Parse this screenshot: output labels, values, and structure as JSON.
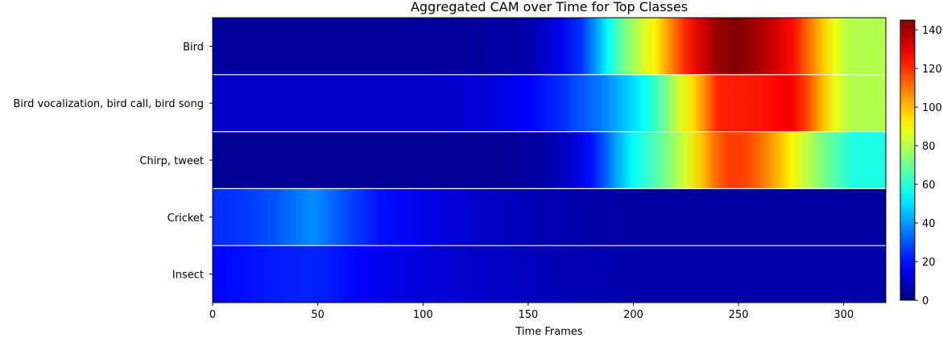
{
  "chart_data": {
    "type": "heatmap",
    "title": "Aggregated CAM over Time for Top Classes",
    "xlabel": "Time Frames",
    "ylabel": "",
    "xlim": [
      0,
      320
    ],
    "xticks": [
      0,
      50,
      100,
      150,
      200,
      250,
      300
    ],
    "colormap": "jet",
    "color_range": [
      0,
      145
    ],
    "colorbar_ticks": [
      0,
      20,
      40,
      60,
      80,
      100,
      120,
      140
    ],
    "rows": [
      {
        "label": "Bird",
        "profile": [
          [
            0,
            4
          ],
          [
            120,
            4
          ],
          [
            150,
            6
          ],
          [
            165,
            15
          ],
          [
            175,
            25
          ],
          [
            182,
            40
          ],
          [
            188,
            55
          ],
          [
            195,
            70
          ],
          [
            203,
            82
          ],
          [
            210,
            92
          ],
          [
            218,
            108
          ],
          [
            225,
            122
          ],
          [
            232,
            132
          ],
          [
            240,
            142
          ],
          [
            248,
            145
          ],
          [
            258,
            140
          ],
          [
            268,
            133
          ],
          [
            276,
            125
          ],
          [
            283,
            112
          ],
          [
            290,
            98
          ],
          [
            296,
            88
          ],
          [
            302,
            80
          ],
          [
            320,
            80
          ]
        ]
      },
      {
        "label": "Bird vocalization, bird call, bird song",
        "profile": [
          [
            0,
            10
          ],
          [
            60,
            10
          ],
          [
            100,
            10
          ],
          [
            130,
            12
          ],
          [
            150,
            18
          ],
          [
            165,
            24
          ],
          [
            175,
            30
          ],
          [
            185,
            36
          ],
          [
            195,
            45
          ],
          [
            205,
            55
          ],
          [
            215,
            70
          ],
          [
            222,
            85
          ],
          [
            228,
            95
          ],
          [
            235,
            110
          ],
          [
            240,
            122
          ],
          [
            260,
            124
          ],
          [
            270,
            127
          ],
          [
            275,
            128
          ],
          [
            282,
            118
          ],
          [
            290,
            100
          ],
          [
            296,
            88
          ],
          [
            302,
            80
          ],
          [
            320,
            80
          ]
        ]
      },
      {
        "label": "Chirp, tweet",
        "profile": [
          [
            0,
            3
          ],
          [
            140,
            3
          ],
          [
            160,
            6
          ],
          [
            172,
            12
          ],
          [
            180,
            20
          ],
          [
            187,
            32
          ],
          [
            193,
            44
          ],
          [
            200,
            55
          ],
          [
            210,
            65
          ],
          [
            218,
            75
          ],
          [
            225,
            85
          ],
          [
            232,
            98
          ],
          [
            238,
            110
          ],
          [
            245,
            118
          ],
          [
            252,
            118
          ],
          [
            260,
            112
          ],
          [
            268,
            102
          ],
          [
            275,
            92
          ],
          [
            282,
            82
          ],
          [
            290,
            72
          ],
          [
            298,
            64
          ],
          [
            305,
            58
          ],
          [
            320,
            58
          ]
        ]
      },
      {
        "label": "Cricket",
        "profile": [
          [
            0,
            24
          ],
          [
            15,
            26
          ],
          [
            30,
            30
          ],
          [
            40,
            35
          ],
          [
            48,
            38
          ],
          [
            55,
            34
          ],
          [
            65,
            28
          ],
          [
            80,
            20
          ],
          [
            100,
            15
          ],
          [
            130,
            10
          ],
          [
            160,
            7
          ],
          [
            200,
            5
          ],
          [
            320,
            5
          ]
        ]
      },
      {
        "label": "Insect",
        "profile": [
          [
            0,
            18
          ],
          [
            15,
            20
          ],
          [
            30,
            22
          ],
          [
            45,
            23
          ],
          [
            55,
            22
          ],
          [
            70,
            18
          ],
          [
            90,
            14
          ],
          [
            120,
            11
          ],
          [
            160,
            8
          ],
          [
            200,
            6
          ],
          [
            320,
            6
          ]
        ]
      }
    ]
  }
}
